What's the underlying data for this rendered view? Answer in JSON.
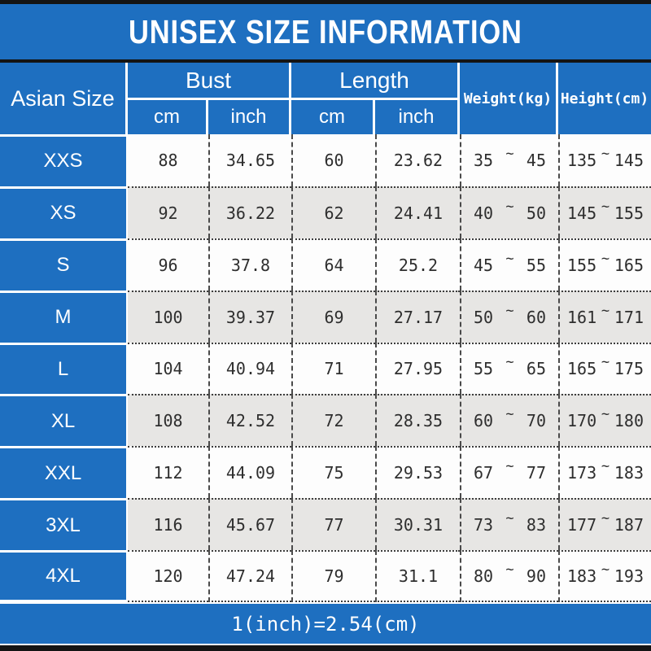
{
  "colors": {
    "accent_blue": "#1e6fc0",
    "row_alt_gray": "#e7e6e4",
    "bar_black": "#141414",
    "text_dark": "#2e2e2e"
  },
  "chart_data": {
    "type": "table",
    "title": "UNISEX SIZE INFORMATION",
    "footnote": "1(inch)=2.54(cm)",
    "symbols": {
      "tilde": "~"
    },
    "headers": {
      "size": "Asian Size",
      "bust": "Bust",
      "length": "Length",
      "weight": "Weight(kg)",
      "height": "Height(cm)",
      "sub_cm": "cm",
      "sub_inch": "inch"
    },
    "rows": [
      {
        "size": "XXS",
        "bust_cm": "88",
        "bust_inch": "34.65",
        "length_cm": "60",
        "length_inch": "23.62",
        "weight_min": "35",
        "weight_max": "45",
        "height_min": "135",
        "height_max": "145"
      },
      {
        "size": "XS",
        "bust_cm": "92",
        "bust_inch": "36.22",
        "length_cm": "62",
        "length_inch": "24.41",
        "weight_min": "40",
        "weight_max": "50",
        "height_min": "145",
        "height_max": "155"
      },
      {
        "size": "S",
        "bust_cm": "96",
        "bust_inch": "37.8",
        "length_cm": "64",
        "length_inch": "25.2",
        "weight_min": "45",
        "weight_max": "55",
        "height_min": "155",
        "height_max": "165"
      },
      {
        "size": "M",
        "bust_cm": "100",
        "bust_inch": "39.37",
        "length_cm": "69",
        "length_inch": "27.17",
        "weight_min": "50",
        "weight_max": "60",
        "height_min": "161",
        "height_max": "171"
      },
      {
        "size": "L",
        "bust_cm": "104",
        "bust_inch": "40.94",
        "length_cm": "71",
        "length_inch": "27.95",
        "weight_min": "55",
        "weight_max": "65",
        "height_min": "165",
        "height_max": "175"
      },
      {
        "size": "XL",
        "bust_cm": "108",
        "bust_inch": "42.52",
        "length_cm": "72",
        "length_inch": "28.35",
        "weight_min": "60",
        "weight_max": "70",
        "height_min": "170",
        "height_max": "180"
      },
      {
        "size": "XXL",
        "bust_cm": "112",
        "bust_inch": "44.09",
        "length_cm": "75",
        "length_inch": "29.53",
        "weight_min": "67",
        "weight_max": "77",
        "height_min": "173",
        "height_max": "183"
      },
      {
        "size": "3XL",
        "bust_cm": "116",
        "bust_inch": "45.67",
        "length_cm": "77",
        "length_inch": "30.31",
        "weight_min": "73",
        "weight_max": "83",
        "height_min": "177",
        "height_max": "187"
      },
      {
        "size": "4XL",
        "bust_cm": "120",
        "bust_inch": "47.24",
        "length_cm": "79",
        "length_inch": "31.1",
        "weight_min": "80",
        "weight_max": "90",
        "height_min": "183",
        "height_max": "193"
      }
    ]
  }
}
